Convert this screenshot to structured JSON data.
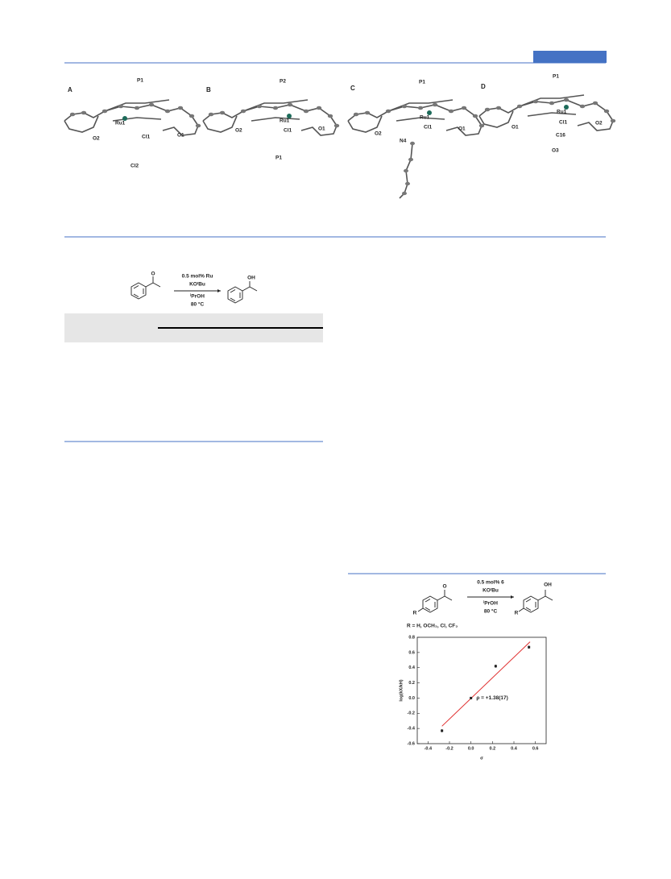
{
  "figure1": {
    "panels": [
      {
        "letter": "A",
        "atoms": [
          "P1",
          "Ru1",
          "Cl1",
          "O2",
          "O1",
          "Cl2"
        ]
      },
      {
        "letter": "B",
        "atoms": [
          "P2",
          "Ru1",
          "Cl1",
          "O2",
          "O1",
          "P1"
        ]
      },
      {
        "letter": "C",
        "atoms": [
          "P1",
          "Ru1",
          "Cl1",
          "O2",
          "O1",
          "N4"
        ]
      },
      {
        "letter": "D",
        "atoms": [
          "P1",
          "Ru1",
          "Cl1",
          "O1",
          "O2",
          "C16",
          "O3"
        ]
      }
    ]
  },
  "scheme1": {
    "reactant_atom": "O",
    "product_atom": "OH",
    "conditions": [
      "0.5 mol% Ru",
      "KOᵗBu",
      "ⁱPrOH",
      "80 °C"
    ]
  },
  "scheme2": {
    "reactant_atom": "O",
    "product_atom": "OH",
    "substituent": "R",
    "conditions": [
      "0.5 mol% 6",
      "KOᵗBu",
      "ⁱPrOH",
      "80 °C"
    ],
    "scope": "R = H, OCH₃, Cl, CF₃"
  },
  "chart_data": {
    "type": "scatter",
    "x_label": "σ",
    "y_label": "log(kX/kH)",
    "annotation": "ρ = +1.38(17)",
    "x": [
      -0.27,
      0,
      0.23,
      0.54
    ],
    "values": [
      -0.43,
      0,
      0.42,
      0.67
    ],
    "errors": [
      0.02,
      0.01,
      0.02,
      0.02
    ],
    "color": "#222222",
    "fit": {
      "x": [
        -0.27,
        0.55
      ],
      "values": [
        -0.37,
        0.74
      ],
      "color": "#e03030"
    },
    "xlim": [
      -0.5,
      0.7
    ],
    "xticks": [
      -0.4,
      -0.2,
      {
        "value": 0,
        "label": "0.0"
      },
      0.2,
      0.4,
      0.6
    ],
    "ylim": [
      -0.6,
      0.8
    ],
    "yticks": [
      -0.6,
      -0.4,
      -0.2,
      {
        "value": 0,
        "label": "0.0"
      },
      0.2,
      0.4,
      0.6,
      0.8
    ]
  }
}
